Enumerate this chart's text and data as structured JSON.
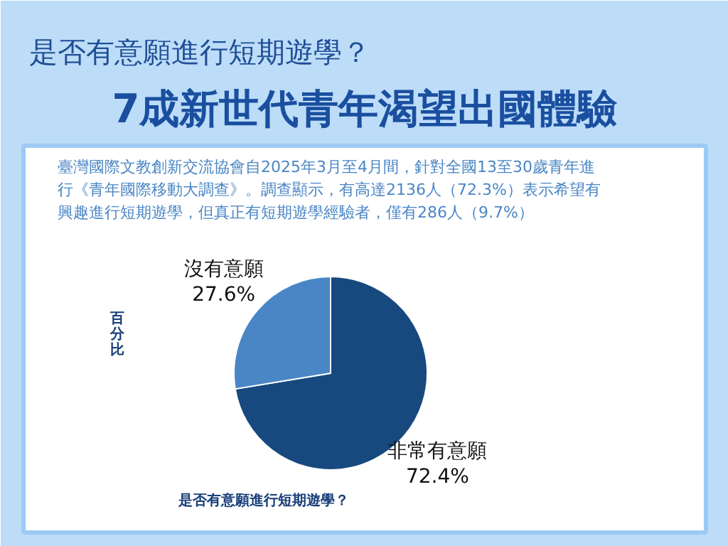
{
  "chart_data": {
    "type": "pie",
    "subtitle": "是否有意願進行短期遊學？",
    "title": "7成新世代青年渴望出國體驗",
    "annotations": [
      "臺灣國際文教創新交流協會自2025年3月至4月間，針對全國13至30歲青年進行《青年國際移動大調查》。調查顯示，有高達2136人（72.3%）表示希望有興趣進行短期遊學，但真正有短期遊學經驗者，僅有286人（9.7%）"
    ],
    "ylabel": "百分比",
    "xlabel": "是否有意願進行短期遊學？",
    "categories": [
      "非常有意願",
      "沒有意願"
    ],
    "values": [
      72.4,
      27.6
    ],
    "colors": [
      "#17497f",
      "#4a86c5"
    ],
    "value_labels": [
      "72.4%",
      "27.6%"
    ]
  }
}
